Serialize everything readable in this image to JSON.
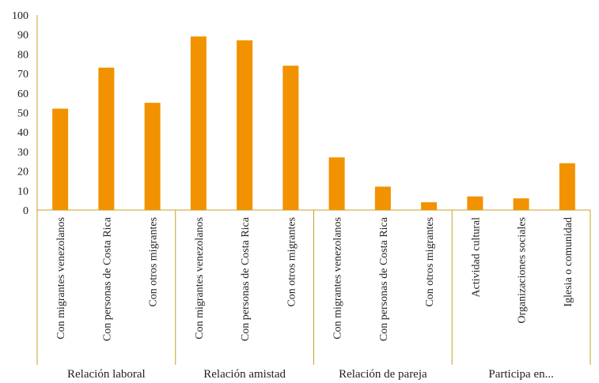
{
  "chart_data": {
    "type": "bar",
    "title": "",
    "xlabel": "",
    "ylabel": "",
    "ylim": [
      0,
      100
    ],
    "yticks": [
      0,
      10,
      20,
      30,
      40,
      50,
      60,
      70,
      80,
      90,
      100
    ],
    "bar_color": "#f29200",
    "axis_color": "#c9a227",
    "groups": [
      {
        "label": "Relación laboral",
        "categories": [
          "Con migrantes venezolanos",
          "Con personas de Costa Rica",
          "Con otros migrantes"
        ],
        "values": [
          52,
          73,
          55
        ]
      },
      {
        "label": "Relación amistad",
        "categories": [
          "Con migrantes venezolanos",
          "Con personas de Costa Rica",
          "Con otros migrantes"
        ],
        "values": [
          89,
          87,
          74
        ]
      },
      {
        "label": "Relación de pareja",
        "categories": [
          "Con migrantes venezolanos",
          "Con personas de Costa Rica",
          "Con otros migrantes"
        ],
        "values": [
          27,
          12,
          4
        ]
      },
      {
        "label": "Participa en...",
        "categories": [
          "Actividad cultural",
          "Organizaciones sociales",
          "Iglesia o comunidad"
        ],
        "values": [
          7,
          6,
          24
        ]
      }
    ]
  }
}
